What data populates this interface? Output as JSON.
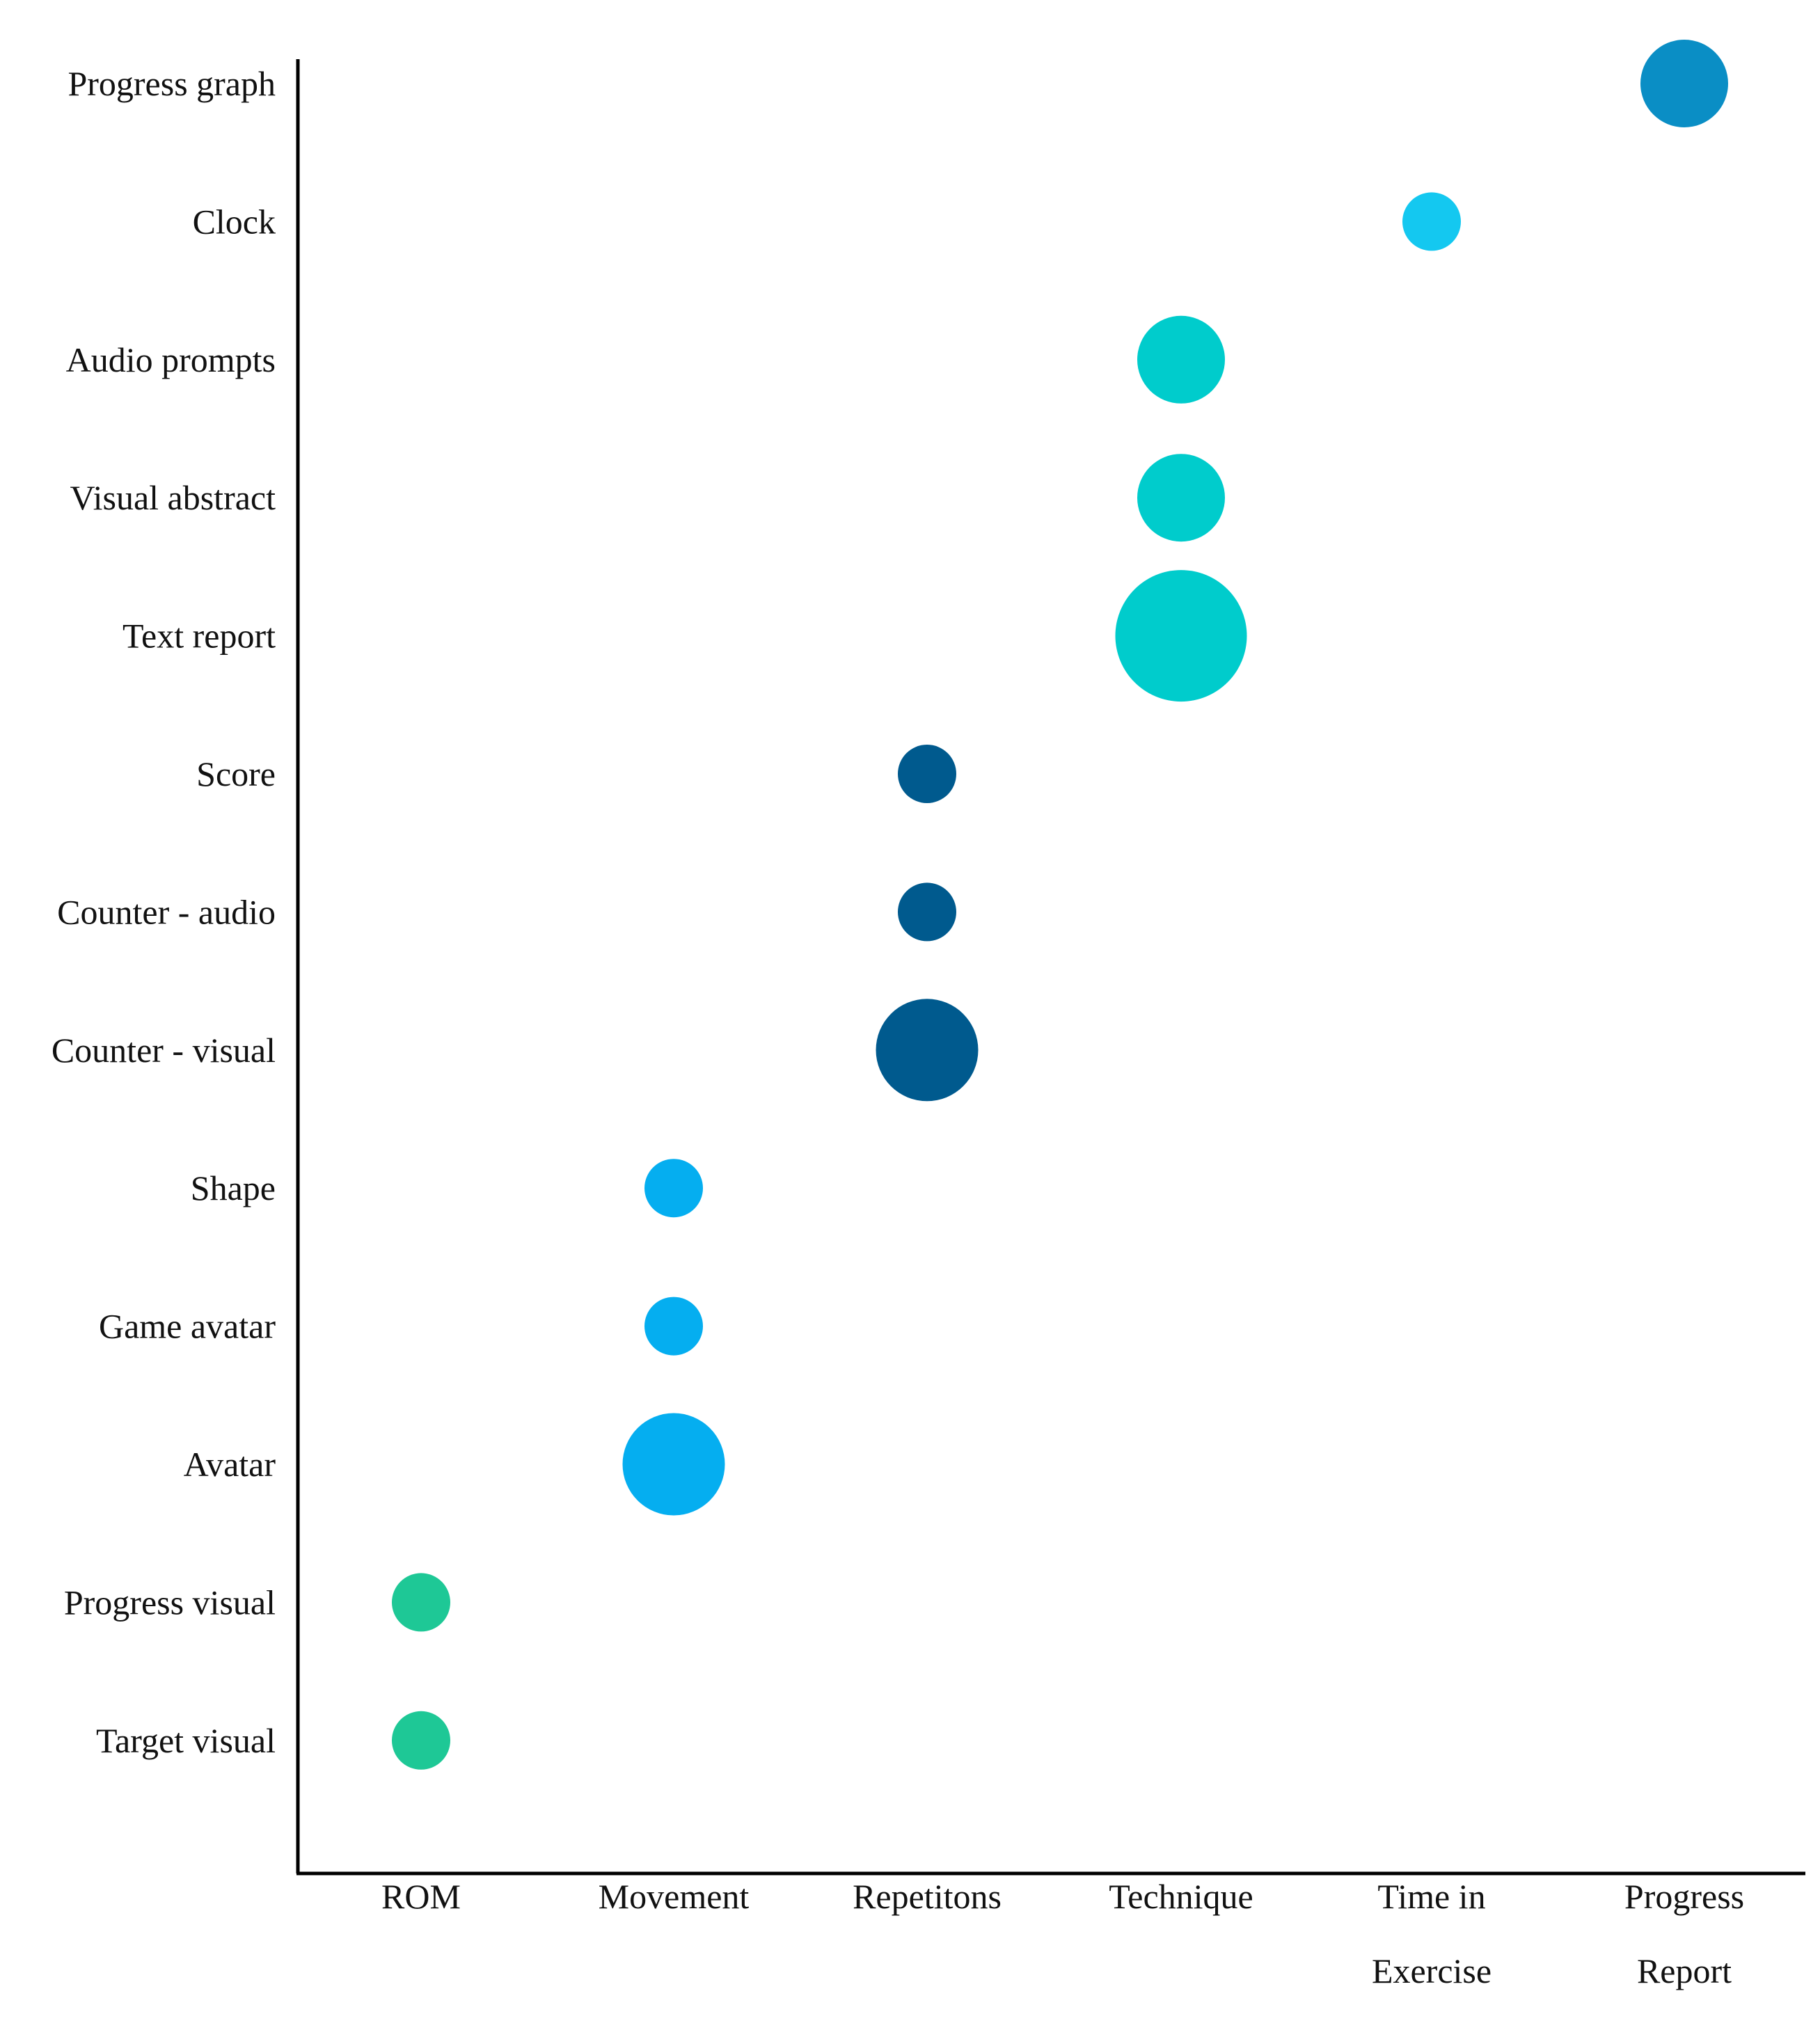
{
  "chart_data": {
    "type": "scatter",
    "subtype": "bubble",
    "title": "",
    "xlabel": "",
    "ylabel": "",
    "x_categories": [
      [
        "ROM"
      ],
      [
        "Movement"
      ],
      [
        "Repetitons"
      ],
      [
        "Technique"
      ],
      [
        "Time in",
        "Exercise"
      ],
      [
        "Progress",
        "Report"
      ]
    ],
    "y_categories": [
      "Progress graph",
      "Clock",
      "Audio prompts",
      "Visual abstract",
      "Text report",
      "Score",
      "Counter - audio",
      "Counter - visual",
      "Shape",
      "Game avatar",
      "Avatar",
      "Progress visual",
      "Target visual"
    ],
    "grid": false,
    "legend": "none",
    "points": [
      {
        "x": 5,
        "y": 0,
        "size": 3,
        "color": "#0a8ec5"
      },
      {
        "x": 4,
        "y": 1,
        "size": 1,
        "color": "#14c8f0"
      },
      {
        "x": 3,
        "y": 2,
        "size": 3,
        "color": "#00cccc"
      },
      {
        "x": 3,
        "y": 3,
        "size": 3,
        "color": "#00cccc"
      },
      {
        "x": 3,
        "y": 4,
        "size": 6,
        "color": "#00cccc"
      },
      {
        "x": 2,
        "y": 5,
        "size": 1,
        "color": "#005a8e"
      },
      {
        "x": 2,
        "y": 6,
        "size": 1,
        "color": "#005a8e"
      },
      {
        "x": 2,
        "y": 7,
        "size": 4,
        "color": "#005a8e"
      },
      {
        "x": 1,
        "y": 8,
        "size": 1,
        "color": "#05aef0"
      },
      {
        "x": 1,
        "y": 9,
        "size": 1,
        "color": "#05aef0"
      },
      {
        "x": 1,
        "y": 10,
        "size": 4,
        "color": "#05aef0"
      },
      {
        "x": 0,
        "y": 11,
        "size": 1,
        "color": "#1ec896"
      },
      {
        "x": 0,
        "y": 12,
        "size": 1,
        "color": "#1ec896"
      }
    ]
  }
}
